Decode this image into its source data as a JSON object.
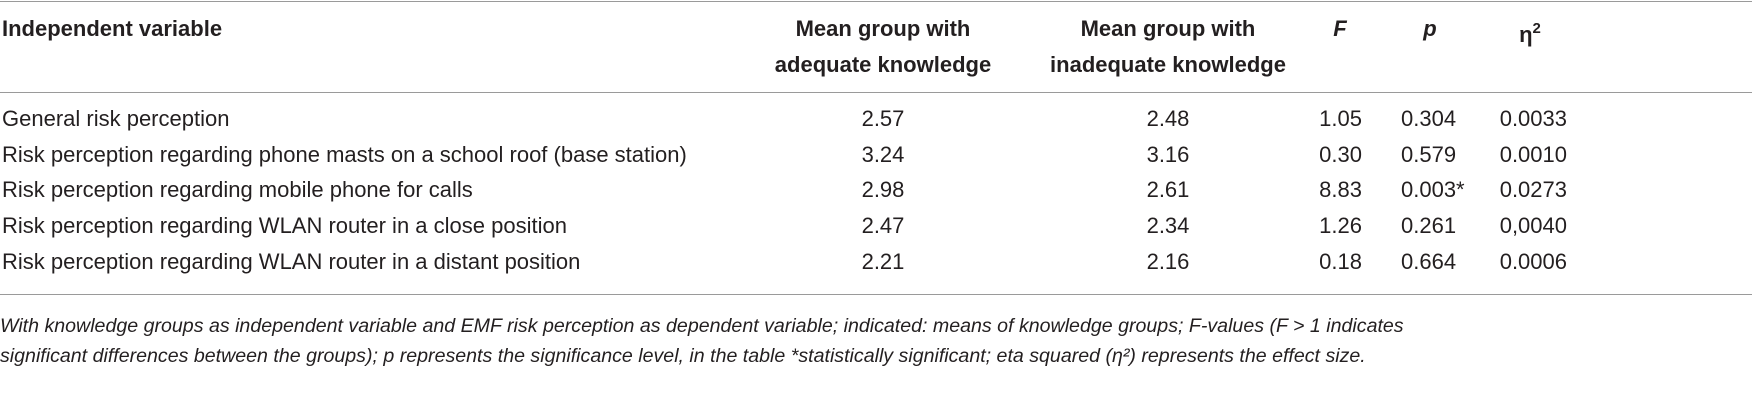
{
  "table": {
    "headers": {
      "variable": "Independent variable",
      "adequate": [
        "Mean group with",
        "adequate knowledge"
      ],
      "inadequate": [
        "Mean group with",
        "inadequate knowledge"
      ],
      "f": "F",
      "p": "p",
      "eta_base": "η",
      "eta_sup": "2"
    },
    "rows": [
      {
        "variable": "General risk perception",
        "adequate": "2.57",
        "inadequate": "2.48",
        "f": "1.05",
        "p": "0.304",
        "eta": "0.0033"
      },
      {
        "variable": "Risk perception regarding phone masts on a school roof (base station)",
        "adequate": "3.24",
        "inadequate": "3.16",
        "f": "0.30",
        "p": "0.579",
        "eta": "0.0010"
      },
      {
        "variable": "Risk perception regarding mobile phone for calls",
        "adequate": "2.98",
        "inadequate": "2.61",
        "f": "8.83",
        "p": "0.003*",
        "eta": "0.0273"
      },
      {
        "variable": "Risk perception regarding WLAN router in a close position",
        "adequate": "2.47",
        "inadequate": "2.34",
        "f": "1.26",
        "p": "0.261",
        "eta": "0,0040"
      },
      {
        "variable": "Risk perception regarding WLAN router in a distant position",
        "adequate": "2.21",
        "inadequate": "2.16",
        "f": "0.18",
        "p": "0.664",
        "eta": "0.0006"
      }
    ]
  },
  "footnote": {
    "line1": "With knowledge groups as independent variable and EMF risk perception as dependent variable; indicated: means of knowledge groups; F-values (F > 1 indicates",
    "line2": "significant differences between the groups); p represents the significance level, in the table *statistically significant; eta squared (η²) represents the effect size."
  }
}
